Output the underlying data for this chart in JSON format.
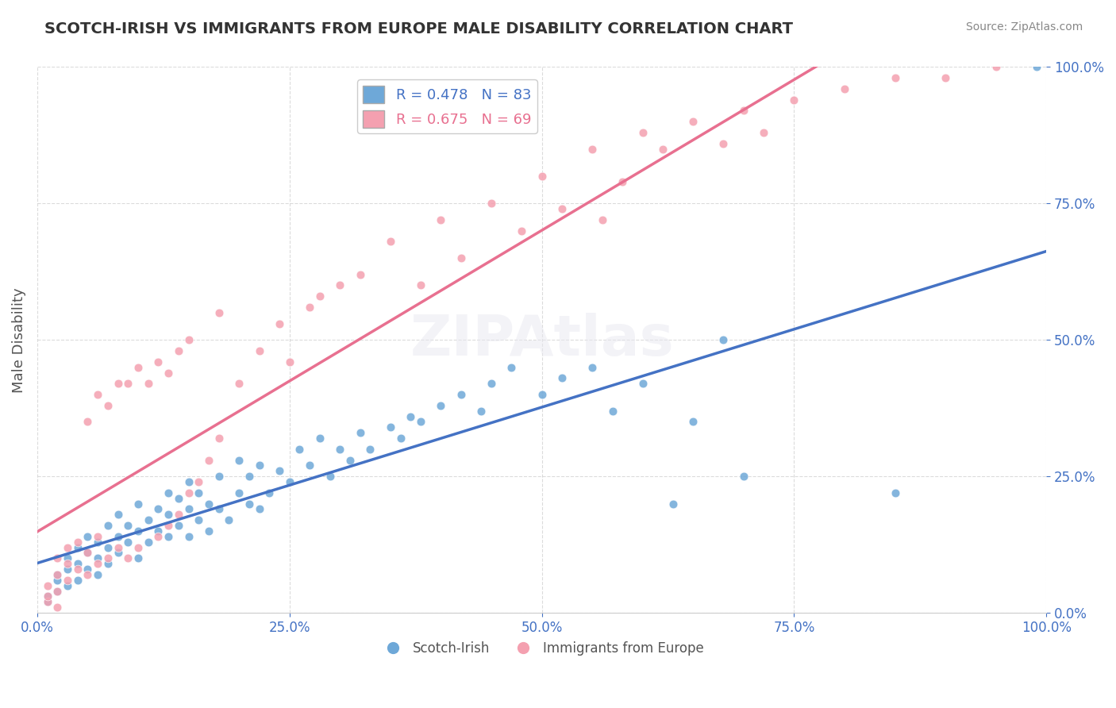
{
  "title": "SCOTCH-IRISH VS IMMIGRANTS FROM EUROPE MALE DISABILITY CORRELATION CHART",
  "source": "Source: ZipAtlas.com",
  "xlabel": "",
  "ylabel": "Male Disability",
  "xlim": [
    0,
    1.0
  ],
  "ylim": [
    0,
    1.0
  ],
  "xticks": [
    0.0,
    0.25,
    0.5,
    0.75,
    1.0
  ],
  "yticks": [
    0.25,
    0.5,
    0.75,
    1.0
  ],
  "xtick_labels": [
    "0.0%",
    "25.0%",
    "50.0%",
    "75.0%",
    "100.0%"
  ],
  "ytick_labels": [
    "25.0%",
    "50.0%",
    "75.0%",
    "100.0%"
  ],
  "blue_R": 0.478,
  "blue_N": 83,
  "pink_R": 0.675,
  "pink_N": 69,
  "blue_color": "#6ea8d8",
  "pink_color": "#f4a0b0",
  "blue_line_color": "#4472c4",
  "pink_line_color": "#e87090",
  "blue_scatter": [
    [
      0.02,
      0.04
    ],
    [
      0.02,
      0.06
    ],
    [
      0.02,
      0.07
    ],
    [
      0.03,
      0.05
    ],
    [
      0.03,
      0.08
    ],
    [
      0.03,
      0.1
    ],
    [
      0.04,
      0.06
    ],
    [
      0.04,
      0.09
    ],
    [
      0.04,
      0.12
    ],
    [
      0.05,
      0.08
    ],
    [
      0.05,
      0.11
    ],
    [
      0.05,
      0.14
    ],
    [
      0.06,
      0.07
    ],
    [
      0.06,
      0.1
    ],
    [
      0.06,
      0.13
    ],
    [
      0.07,
      0.09
    ],
    [
      0.07,
      0.12
    ],
    [
      0.07,
      0.16
    ],
    [
      0.08,
      0.11
    ],
    [
      0.08,
      0.14
    ],
    [
      0.08,
      0.18
    ],
    [
      0.09,
      0.13
    ],
    [
      0.09,
      0.16
    ],
    [
      0.1,
      0.1
    ],
    [
      0.1,
      0.15
    ],
    [
      0.1,
      0.2
    ],
    [
      0.11,
      0.13
    ],
    [
      0.11,
      0.17
    ],
    [
      0.12,
      0.15
    ],
    [
      0.12,
      0.19
    ],
    [
      0.13,
      0.14
    ],
    [
      0.13,
      0.18
    ],
    [
      0.13,
      0.22
    ],
    [
      0.14,
      0.16
    ],
    [
      0.14,
      0.21
    ],
    [
      0.15,
      0.14
    ],
    [
      0.15,
      0.19
    ],
    [
      0.15,
      0.24
    ],
    [
      0.16,
      0.17
    ],
    [
      0.16,
      0.22
    ],
    [
      0.17,
      0.15
    ],
    [
      0.17,
      0.2
    ],
    [
      0.18,
      0.19
    ],
    [
      0.18,
      0.25
    ],
    [
      0.19,
      0.17
    ],
    [
      0.2,
      0.22
    ],
    [
      0.2,
      0.28
    ],
    [
      0.21,
      0.2
    ],
    [
      0.21,
      0.25
    ],
    [
      0.22,
      0.19
    ],
    [
      0.22,
      0.27
    ],
    [
      0.23,
      0.22
    ],
    [
      0.24,
      0.26
    ],
    [
      0.25,
      0.24
    ],
    [
      0.26,
      0.3
    ],
    [
      0.27,
      0.27
    ],
    [
      0.28,
      0.32
    ],
    [
      0.29,
      0.25
    ],
    [
      0.3,
      0.3
    ],
    [
      0.31,
      0.28
    ],
    [
      0.32,
      0.33
    ],
    [
      0.33,
      0.3
    ],
    [
      0.35,
      0.34
    ],
    [
      0.36,
      0.32
    ],
    [
      0.37,
      0.36
    ],
    [
      0.38,
      0.35
    ],
    [
      0.4,
      0.38
    ],
    [
      0.42,
      0.4
    ],
    [
      0.44,
      0.37
    ],
    [
      0.45,
      0.42
    ],
    [
      0.47,
      0.45
    ],
    [
      0.5,
      0.4
    ],
    [
      0.52,
      0.43
    ],
    [
      0.55,
      0.45
    ],
    [
      0.57,
      0.37
    ],
    [
      0.6,
      0.42
    ],
    [
      0.63,
      0.2
    ],
    [
      0.65,
      0.35
    ],
    [
      0.68,
      0.5
    ],
    [
      0.7,
      0.25
    ],
    [
      0.85,
      0.22
    ],
    [
      0.99,
      1.0
    ],
    [
      0.01,
      0.02
    ],
    [
      0.01,
      0.03
    ]
  ],
  "pink_scatter": [
    [
      0.01,
      0.02
    ],
    [
      0.01,
      0.03
    ],
    [
      0.01,
      0.05
    ],
    [
      0.02,
      0.04
    ],
    [
      0.02,
      0.07
    ],
    [
      0.02,
      0.1
    ],
    [
      0.03,
      0.06
    ],
    [
      0.03,
      0.09
    ],
    [
      0.03,
      0.12
    ],
    [
      0.04,
      0.08
    ],
    [
      0.04,
      0.13
    ],
    [
      0.05,
      0.07
    ],
    [
      0.05,
      0.11
    ],
    [
      0.05,
      0.35
    ],
    [
      0.06,
      0.09
    ],
    [
      0.06,
      0.14
    ],
    [
      0.06,
      0.4
    ],
    [
      0.07,
      0.1
    ],
    [
      0.07,
      0.38
    ],
    [
      0.08,
      0.12
    ],
    [
      0.08,
      0.42
    ],
    [
      0.09,
      0.1
    ],
    [
      0.09,
      0.42
    ],
    [
      0.1,
      0.12
    ],
    [
      0.1,
      0.45
    ],
    [
      0.11,
      0.42
    ],
    [
      0.12,
      0.14
    ],
    [
      0.12,
      0.46
    ],
    [
      0.13,
      0.16
    ],
    [
      0.13,
      0.44
    ],
    [
      0.14,
      0.18
    ],
    [
      0.14,
      0.48
    ],
    [
      0.15,
      0.22
    ],
    [
      0.15,
      0.5
    ],
    [
      0.16,
      0.24
    ],
    [
      0.17,
      0.28
    ],
    [
      0.18,
      0.32
    ],
    [
      0.18,
      0.55
    ],
    [
      0.2,
      0.42
    ],
    [
      0.22,
      0.48
    ],
    [
      0.24,
      0.53
    ],
    [
      0.25,
      0.46
    ],
    [
      0.27,
      0.56
    ],
    [
      0.3,
      0.6
    ],
    [
      0.35,
      0.68
    ],
    [
      0.4,
      0.72
    ],
    [
      0.45,
      0.75
    ],
    [
      0.5,
      0.8
    ],
    [
      0.55,
      0.85
    ],
    [
      0.56,
      0.72
    ],
    [
      0.6,
      0.88
    ],
    [
      0.65,
      0.9
    ],
    [
      0.7,
      0.92
    ],
    [
      0.75,
      0.94
    ],
    [
      0.8,
      0.96
    ],
    [
      0.85,
      0.98
    ],
    [
      0.9,
      0.98
    ],
    [
      0.95,
      1.0
    ],
    [
      0.38,
      0.6
    ],
    [
      0.42,
      0.65
    ],
    [
      0.28,
      0.58
    ],
    [
      0.32,
      0.62
    ],
    [
      0.48,
      0.7
    ],
    [
      0.52,
      0.74
    ],
    [
      0.58,
      0.79
    ],
    [
      0.62,
      0.85
    ],
    [
      0.68,
      0.86
    ],
    [
      0.72,
      0.88
    ],
    [
      0.02,
      0.01
    ]
  ],
  "blue_trend": [
    0.0,
    1.0,
    0.02,
    0.5
  ],
  "pink_trend": [
    0.0,
    1.0,
    0.0,
    1.0
  ],
  "watermark": "ZIPAtlas",
  "title_color": "#333333",
  "axis_label_color": "#4472c4",
  "tick_color": "#4472c4",
  "grid_color": "#cccccc",
  "legend_blue_text": "R = 0.478   N = 83",
  "legend_pink_text": "R = 0.675   N = 69"
}
